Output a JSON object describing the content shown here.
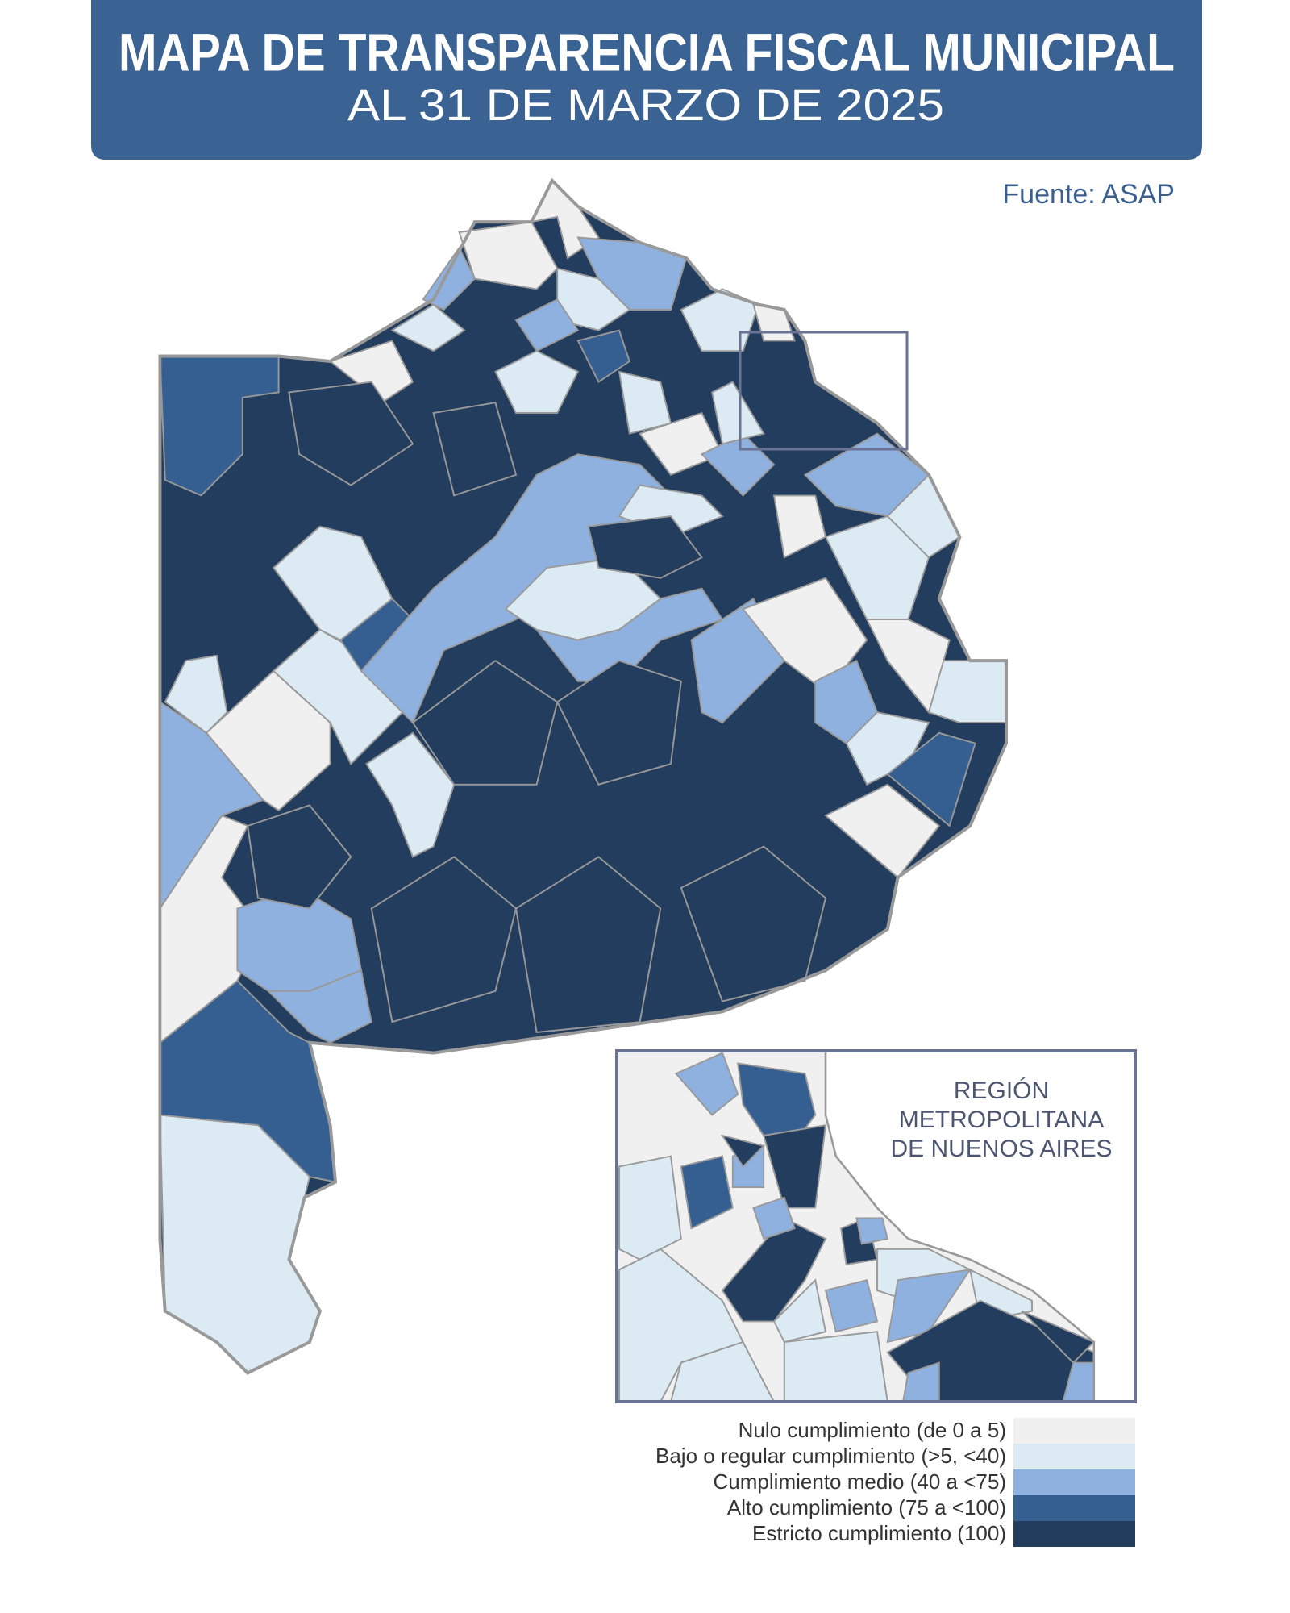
{
  "header": {
    "title": "MAPA DE TRANSPARENCIA FISCAL MUNICIPAL",
    "subtitle": "AL 31 DE MARZO DE 2025"
  },
  "source": "Fuente: ASAP",
  "inset": {
    "label": [
      "REGIÓN",
      "METROPOLITANA",
      "DE NUENOS AIRES"
    ]
  },
  "legend": {
    "items": [
      {
        "label": "Nulo cumplimiento (de 0 a 5)",
        "color": "#f0f0f0"
      },
      {
        "label": "Bajo o regular cumplimiento (>5, <40)",
        "color": "#dcebf3"
      },
      {
        "label": "Cumplimiento medio (40 a <75)",
        "color": "#8fb1df"
      },
      {
        "label": "Alto cumplimiento (75 a <100)",
        "color": "#355f91"
      },
      {
        "label": "Estricto cumplimiento (100)",
        "color": "#233d5e"
      }
    ]
  }
}
